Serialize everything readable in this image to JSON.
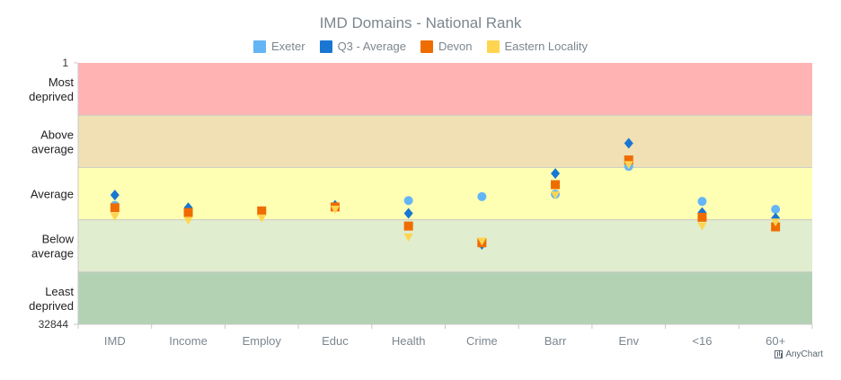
{
  "chart_data": {
    "type": "scatter",
    "title": "IMD Domains - National Rank",
    "categories": [
      "IMD",
      "Income",
      "Employ",
      "Educ",
      "Health",
      "Crime",
      "Barr",
      "Env",
      "<16",
      "60+"
    ],
    "y_axis": {
      "min": 1,
      "max": 32844,
      "inverted": true,
      "tick_labels": [
        "1",
        "32844"
      ]
    },
    "bands": [
      {
        "label": "Most deprived",
        "from": 1,
        "to": 6569,
        "color": "#ffb3b3"
      },
      {
        "label": "Above average",
        "from": 6569,
        "to": 13138,
        "color": "#f0e0b4"
      },
      {
        "label": "Average",
        "from": 13138,
        "to": 19707,
        "color": "#ffffb4"
      },
      {
        "label": "Below average",
        "from": 19707,
        "to": 26276,
        "color": "#e0edce"
      },
      {
        "label": "Least deprived",
        "from": 26276,
        "to": 32844,
        "color": "#b3d2b3"
      }
    ],
    "series": [
      {
        "name": "Exeter",
        "color": "#64b5f6",
        "marker": "circle",
        "values": [
          17900,
          null,
          null,
          null,
          17300,
          16800,
          16500,
          13000,
          17400,
          18400
        ]
      },
      {
        "name": "Q3 - Average",
        "color": "#1976d2",
        "marker": "diamond",
        "values": [
          16600,
          18200,
          18800,
          17900,
          18900,
          22800,
          13900,
          10100,
          18800,
          19500
        ]
      },
      {
        "name": "Devon",
        "color": "#ef6c00",
        "marker": "square",
        "values": [
          18200,
          18800,
          18600,
          18100,
          20500,
          22600,
          15300,
          12200,
          19400,
          20600
        ]
      },
      {
        "name": "Eastern Locality",
        "color": "#ffd54f",
        "marker": "triangle-down",
        "values": [
          19300,
          19800,
          19500,
          18400,
          21900,
          22400,
          16600,
          12800,
          20500,
          20000
        ]
      }
    ]
  },
  "credit": "AnyChart"
}
